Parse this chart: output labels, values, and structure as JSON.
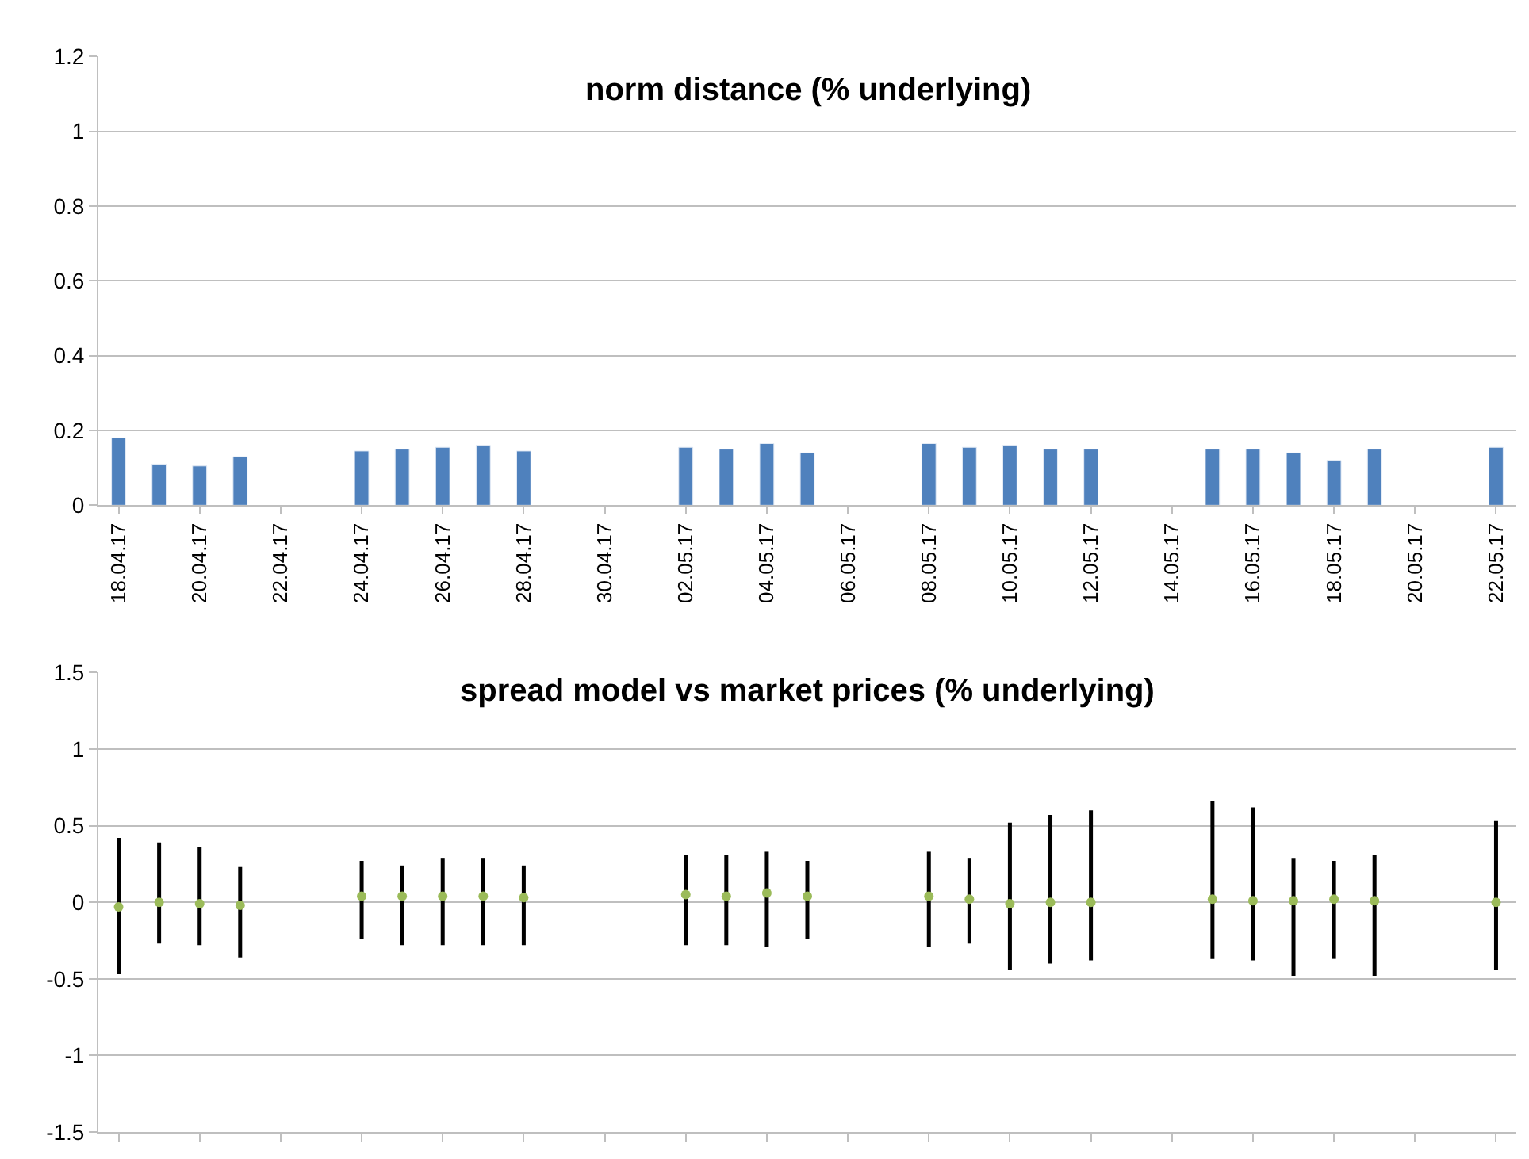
{
  "chart_data": [
    {
      "type": "bar",
      "title": "norm distance (% underlying)",
      "categories": [
        "18.04.17",
        null,
        "20.04.17",
        null,
        "22.04.17",
        null,
        "24.04.17",
        null,
        "26.04.17",
        null,
        "28.04.17",
        null,
        "30.04.17",
        null,
        "02.05.17",
        null,
        "04.05.17",
        null,
        "06.05.17",
        null,
        "08.05.17",
        null,
        "10.05.17",
        null,
        "12.05.17",
        null,
        "14.05.17",
        null,
        "16.05.17",
        null,
        "18.05.17",
        null,
        "20.05.17",
        null,
        "22.05.17"
      ],
      "values": [
        0.18,
        0.11,
        0.105,
        0.13,
        null,
        null,
        0.145,
        0.15,
        0.155,
        0.16,
        0.145,
        null,
        null,
        null,
        0.155,
        0.15,
        0.165,
        0.14,
        null,
        null,
        0.165,
        0.155,
        0.16,
        0.15,
        0.15,
        null,
        null,
        0.15,
        0.15,
        0.14,
        0.12,
        0.15,
        null,
        null,
        0.155
      ],
      "color": "#4f81bd",
      "ylim": [
        0,
        1.2
      ],
      "yticks": [
        0,
        0.2,
        0.4,
        0.6,
        0.8,
        1,
        1.2
      ],
      "grid": "y"
    },
    {
      "type": "scatter",
      "title": "spread model vs market prices (% underlying)",
      "categories": [
        "18.04.17",
        null,
        "20.04.17",
        null,
        "22.04.17",
        null,
        "24.04.17",
        null,
        "26.04.17",
        null,
        "28.04.17",
        null,
        "30.04.17",
        null,
        "02.05.17",
        null,
        "04.05.17",
        null,
        "06.05.17",
        null,
        "08.05.17",
        null,
        "10.05.17",
        null,
        "12.05.17",
        null,
        "14.05.17",
        null,
        "16.05.17",
        null,
        "18.05.17",
        null,
        "20.05.17",
        null,
        "22.05.17"
      ],
      "values": [
        -0.03,
        0,
        -0.01,
        -0.02,
        null,
        null,
        0.04,
        0.04,
        0.04,
        0.04,
        0.03,
        null,
        null,
        null,
        0.05,
        0.04,
        0.06,
        0.04,
        null,
        null,
        0.04,
        0.02,
        -0.01,
        0,
        0,
        null,
        null,
        0.02,
        0.01,
        0.01,
        0.02,
        0.01,
        null,
        null,
        0
      ],
      "errors": [
        [
          -0.47,
          0.42
        ],
        [
          -0.27,
          0.39
        ],
        [
          -0.28,
          0.36
        ],
        [
          -0.36,
          0.23
        ],
        null,
        null,
        [
          -0.24,
          0.27
        ],
        [
          -0.28,
          0.24
        ],
        [
          -0.28,
          0.29
        ],
        [
          -0.28,
          0.29
        ],
        [
          -0.28,
          0.24
        ],
        null,
        null,
        null,
        [
          -0.28,
          0.31
        ],
        [
          -0.28,
          0.31
        ],
        [
          -0.29,
          0.33
        ],
        [
          -0.24,
          0.27
        ],
        null,
        null,
        [
          -0.29,
          0.33
        ],
        [
          -0.27,
          0.29
        ],
        [
          -0.44,
          0.52
        ],
        [
          -0.4,
          0.57
        ],
        [
          -0.38,
          0.6
        ],
        null,
        null,
        [
          -0.37,
          0.66
        ],
        [
          -0.38,
          0.62
        ],
        [
          -0.48,
          0.29
        ],
        [
          -0.37,
          0.27
        ],
        [
          -0.48,
          0.31
        ],
        null,
        null,
        [
          -0.44,
          0.53
        ]
      ],
      "color": "#9bbb59",
      "marker": "circle",
      "ylim": [
        -1.5,
        1.5
      ],
      "yticks": [
        -1.5,
        -1,
        -0.5,
        0,
        0.5,
        1,
        1.5
      ],
      "grid": "y",
      "tick_labels": "y"
    }
  ]
}
